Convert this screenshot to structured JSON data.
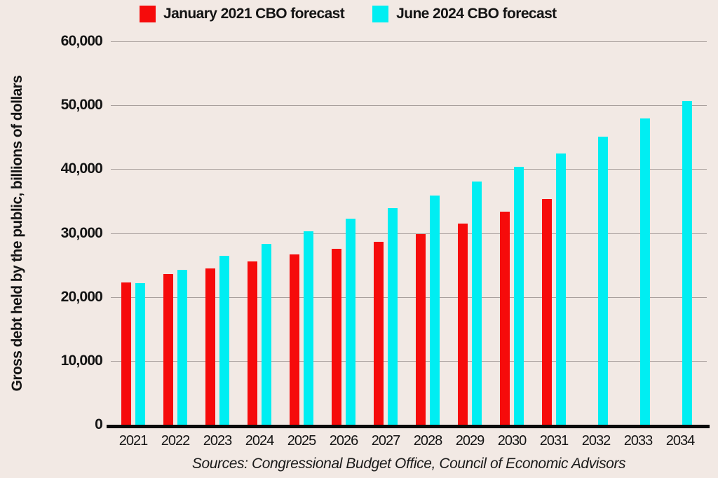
{
  "colors": {
    "background": "#f2e9e4",
    "gridline": "#a9a09d",
    "axis": "#0b0b0b",
    "red_series": "#f60b0b",
    "cyan_series": "#00eef2"
  },
  "chart_data": {
    "type": "bar",
    "title": "",
    "xlabel": "",
    "ylabel": "Gross debt held by the public, billions of dollars",
    "ylim": [
      0,
      60000
    ],
    "grid": true,
    "legend_position": "top",
    "categories": [
      "2021",
      "2022",
      "2023",
      "2024",
      "2025",
      "2026",
      "2027",
      "2028",
      "2029",
      "2030",
      "2031",
      "2032",
      "2033",
      "2034"
    ],
    "series": [
      {
        "name": "January 2021 CBO forecast",
        "color": "#f60b0b",
        "values": [
          22300,
          23600,
          24500,
          25600,
          26700,
          27500,
          28600,
          29800,
          31500,
          33300,
          35300,
          null,
          null,
          null
        ]
      },
      {
        "name": "June 2024 CBO forecast",
        "color": "#00eef2",
        "values": [
          22200,
          24200,
          26400,
          28300,
          30300,
          32200,
          33900,
          35900,
          38100,
          40400,
          42400,
          45100,
          47900,
          50700
        ]
      }
    ],
    "yticks": [
      {
        "value": 60000,
        "label": "60,000"
      },
      {
        "value": 50000,
        "label": "50,000"
      },
      {
        "value": 40000,
        "label": "40,000"
      },
      {
        "value": 30000,
        "label": "30,000"
      },
      {
        "value": 20000,
        "label": "20,000"
      },
      {
        "value": 10000,
        "label": "10,000"
      },
      {
        "value": 0,
        "label": "0"
      }
    ],
    "source_note": "Sources: Congressional Budget Office, Council of Economic Advisors"
  }
}
